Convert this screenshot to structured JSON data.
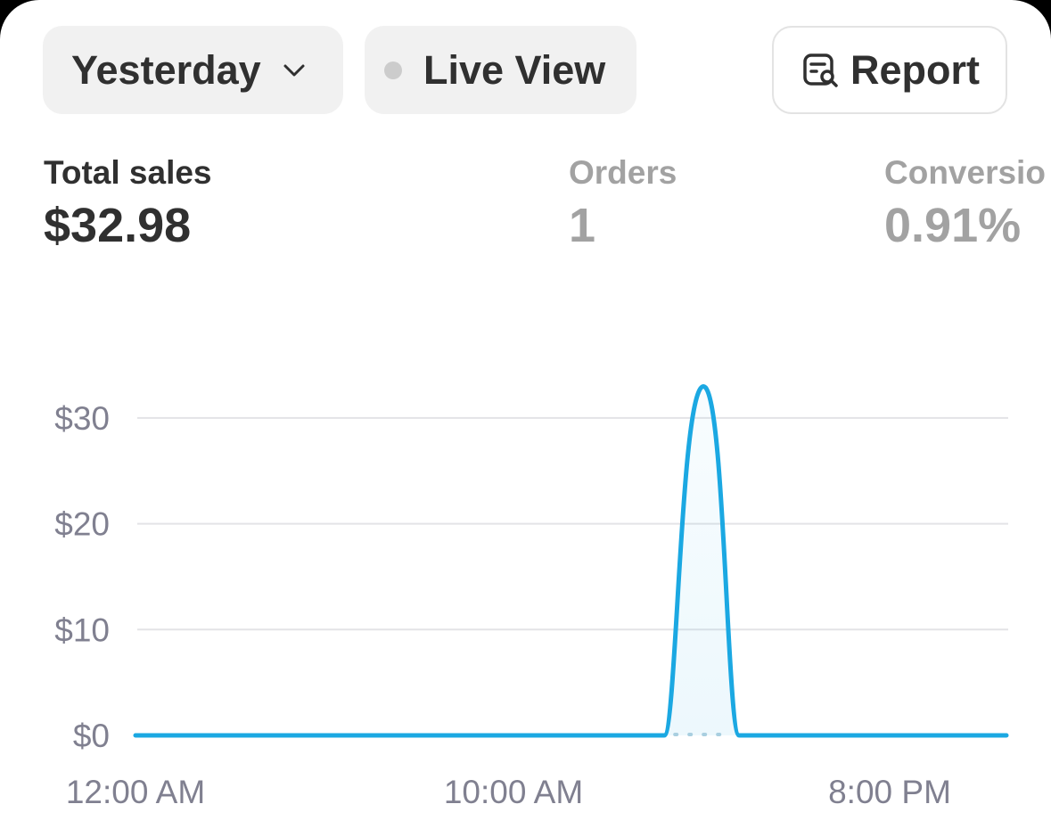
{
  "toolbar": {
    "date_label": "Yesterday",
    "live_label": "Live View",
    "report_label": "Report",
    "live_dot_color": "#cccccc"
  },
  "metrics": {
    "sales": {
      "label": "Total sales",
      "value": "$32.98"
    },
    "orders": {
      "label": "Orders",
      "value": "1"
    },
    "conversion": {
      "label": "Conversio",
      "value": "0.91%"
    }
  },
  "chart_data": {
    "type": "line",
    "x_tick_labels": [
      "12:00 AM",
      "10:00 AM",
      "8:00 PM"
    ],
    "y_tick_labels": [
      "$0",
      "$10",
      "$20",
      "$30"
    ],
    "y_ticks": [
      0,
      10,
      20,
      30
    ],
    "ylim": [
      0,
      33
    ],
    "x_hours": [
      0,
      1,
      2,
      3,
      4,
      5,
      6,
      7,
      8,
      9,
      10,
      11,
      12,
      13,
      14,
      15,
      16,
      17,
      18,
      19,
      20,
      21,
      22,
      23
    ],
    "series": [
      {
        "color": "#1ba8e2",
        "values": [
          0,
          0,
          0,
          0,
          0,
          0,
          0,
          0,
          0,
          0,
          0,
          0,
          0,
          0,
          0,
          32.98,
          0,
          0,
          0,
          0,
          0,
          0,
          0,
          0
        ]
      }
    ],
    "grid": true
  }
}
